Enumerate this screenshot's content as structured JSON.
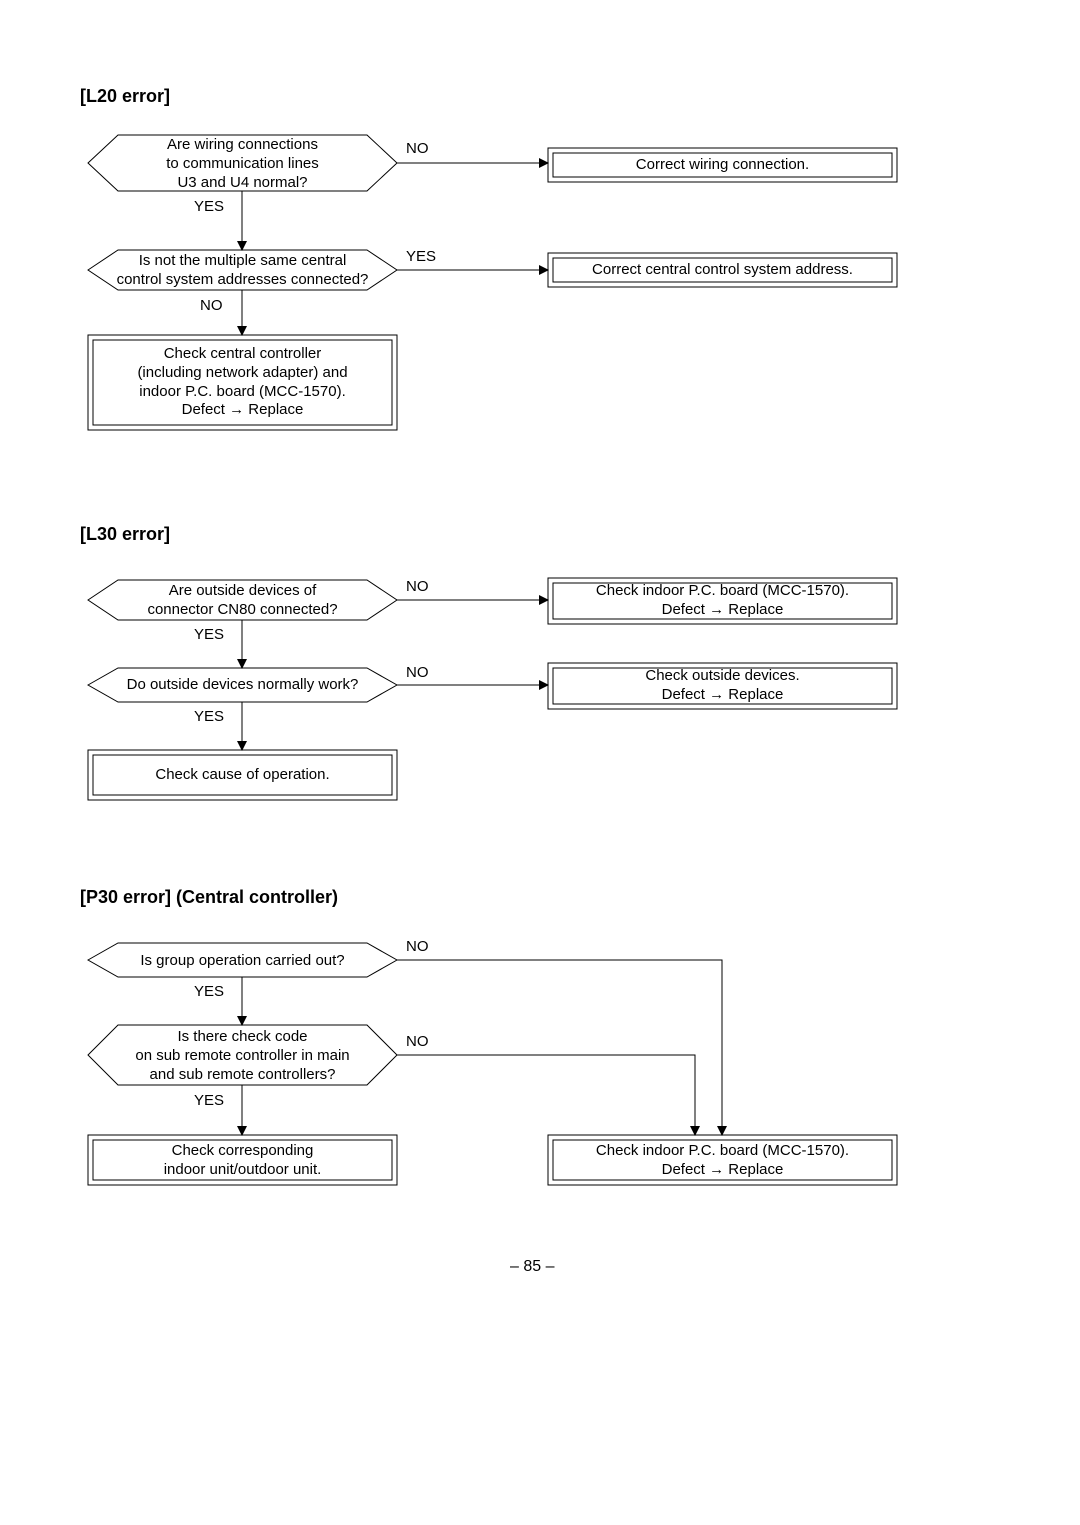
{
  "page_number": "– 85 –",
  "labels": {
    "yes": "YES",
    "no": "NO"
  },
  "style": {
    "stroke": "#000000",
    "stroke_width": 1,
    "arrow_size": 10,
    "font_size": 15,
    "heading_font_size": 18
  },
  "sections": {
    "l20": {
      "title": "[L20 error]",
      "decision1": "Are wiring connections\nto communication lines\nU3 and U4 normal?",
      "decision2": "Is not the multiple same central\ncontrol system addresses connected?",
      "process1": "Correct wiring connection.",
      "process2": "Correct central control system address.",
      "process3": "Check central controller\n(including network adapter) and\nindoor P.C. board (MCC-1570).\nDefect → Replace"
    },
    "l30": {
      "title": "[L30 error]",
      "decision1": "Are outside devices of\nconnector CN80 connected?",
      "decision2": "Do outside devices normally work?",
      "process1": "Check indoor P.C. board (MCC-1570).\nDefect → Replace",
      "process2": "Check outside devices.\nDefect → Replace",
      "process3": "Check cause of operation."
    },
    "p30": {
      "title": "[P30 error] (Central controller)",
      "decision1": "Is group operation carried out?",
      "decision2": "Is there check code\non sub remote controller in main\nand sub remote controllers?",
      "process1": "Check corresponding\nindoor unit/outdoor unit.",
      "process2": "Check indoor P.C. board (MCC-1570).\nDefect → Replace"
    }
  }
}
